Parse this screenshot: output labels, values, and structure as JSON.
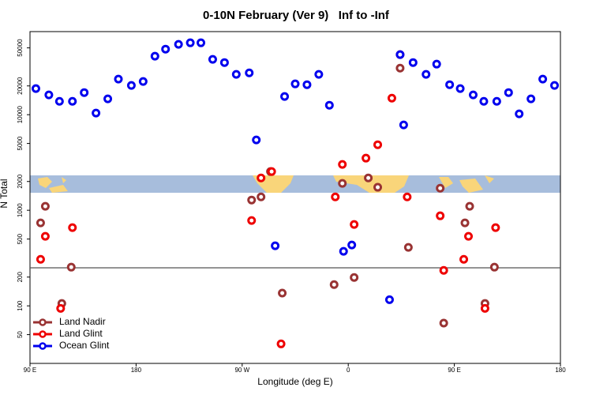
{
  "chart_data": {
    "type": "scatter",
    "title": "0-10N February (Ver 9)   Inf to -Inf",
    "x_label": "Longitude (deg E)",
    "y_label": "N Total",
    "log_y": true,
    "xlim": [
      90,
      540
    ],
    "xticks": [
      {
        "value": 90,
        "label": "90 E"
      },
      180,
      {
        "value": 270,
        "label": "90 W"
      },
      {
        "value": 360,
        "label": "0"
      },
      {
        "value": 450,
        "label": "90 E"
      },
      {
        "value": 540,
        "label": "180"
      }
    ],
    "ylim": [
      25,
      74000
    ],
    "yticks": [
      50,
      100,
      200,
      500,
      1000,
      2000,
      5000,
      10000,
      20000,
      50000
    ],
    "reference_line": 250,
    "legend": "bottom-left",
    "series": [
      {
        "name": "Land Nadir",
        "color": "#993333",
        "x": [
          103,
          99,
          125,
          117,
          278,
          286,
          294,
          304,
          348,
          355,
          365,
          377,
          385,
          404,
          411,
          438,
          441,
          459,
          463,
          476,
          484
        ],
        "values": [
          1100,
          738,
          254,
          106,
          1280,
          1380,
          2540,
          136,
          167,
          1910,
          198,
          2180,
          1740,
          30700,
          409,
          1700,
          66,
          738,
          1100,
          106,
          254
        ]
      },
      {
        "name": "Land Glint",
        "color": "#ee0000",
        "x": [
          99,
          103,
          126,
          116,
          286,
          278,
          295,
          303,
          349,
          355,
          365,
          375,
          385,
          397,
          404,
          410,
          438,
          441,
          458,
          462,
          485,
          476
        ],
        "values": [
          307,
          534,
          658,
          94,
          2180,
          781,
          2540,
          40,
          1380,
          3020,
          710,
          3510,
          4850,
          14900,
          42500,
          1380,
          875,
          235,
          307,
          534,
          658,
          94
        ]
      },
      {
        "name": "Ocean Glint",
        "color": "#0000ee",
        "x": [
          95,
          106,
          115,
          126,
          136,
          146,
          156,
          165,
          176,
          186,
          196,
          205,
          216,
          226,
          235,
          245,
          255,
          265,
          276,
          282,
          298,
          306,
          315,
          325,
          335,
          344,
          356,
          363,
          395,
          404,
          407,
          415,
          426,
          435,
          446,
          455,
          466,
          475,
          486,
          496,
          505,
          515,
          525,
          535
        ],
        "values": [
          18750,
          16100,
          13800,
          13800,
          17030,
          10400,
          14640,
          23550,
          20220,
          22240,
          40900,
          48500,
          54400,
          56500,
          56500,
          37900,
          35100,
          26400,
          27400,
          5440,
          425,
          15500,
          21000,
          20600,
          26400,
          12560,
          372,
          433,
          116,
          42500,
          7810,
          35100,
          26400,
          33800,
          20600,
          18750,
          16100,
          13800,
          13800,
          17030,
          10200,
          14640,
          23550,
          20220
        ]
      }
    ]
  }
}
